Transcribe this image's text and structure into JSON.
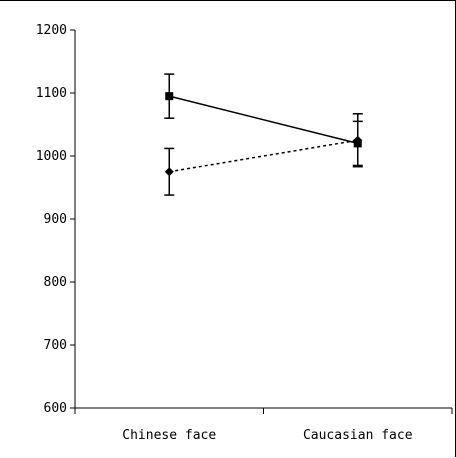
{
  "chart_data": {
    "type": "line",
    "title": "",
    "xlabel": "",
    "ylabel": "",
    "categories": [
      "Chinese face",
      "Caucasian face"
    ],
    "ylim": [
      600,
      1200
    ],
    "yticks": [
      600,
      700,
      800,
      900,
      1000,
      1100,
      1200
    ],
    "grid": false,
    "legend": "none",
    "series": [
      {
        "marker": "square",
        "line_style": "solid",
        "values": [
          1095,
          1020
        ],
        "error": [
          35,
          35
        ],
        "color": "#000000"
      },
      {
        "marker": "diamond",
        "line_style": "dotted",
        "values": [
          975,
          1025
        ],
        "error": [
          37,
          42
        ],
        "color": "#000000"
      }
    ]
  }
}
